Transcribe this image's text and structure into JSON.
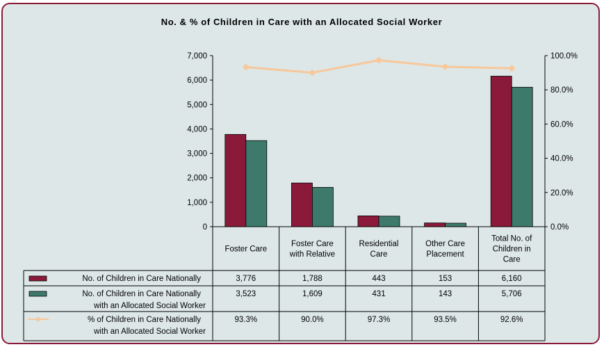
{
  "chart_data": {
    "type": "bar",
    "title": "No. & % of Children in Care with an Allocated Social Worker",
    "categories": [
      [
        "Foster Care"
      ],
      [
        "Foster Care",
        "with Relative"
      ],
      [
        "Residential",
        "Care"
      ],
      [
        "Other Care",
        "Placement"
      ],
      [
        "Total No. of",
        "Children in",
        "Care"
      ]
    ],
    "ylim": [
      0,
      7000
    ],
    "y2lim": [
      0,
      100
    ],
    "y_ticks": [
      "0",
      "1,000",
      "2,000",
      "3,000",
      "4,000",
      "5,000",
      "6,000",
      "7,000"
    ],
    "y2_ticks": [
      "0.0%",
      "20.0%",
      "40.0%",
      "60.0%",
      "80.0%",
      "100.0%"
    ],
    "grid": false,
    "legend": "data-table",
    "series": [
      {
        "name": [
          "No. of Children in Care Nationally"
        ],
        "type": "bar",
        "axis": "left",
        "color": "#8b1a3a",
        "values": [
          3776,
          1788,
          443,
          153,
          6160
        ],
        "labels": [
          "3,776",
          "1,788",
          "443",
          "153",
          "6,160"
        ]
      },
      {
        "name": [
          "No. of Children in Care Nationally",
          "with an Allocated Social Worker"
        ],
        "type": "bar",
        "axis": "left",
        "color": "#3d7a6b",
        "values": [
          3523,
          1609,
          431,
          143,
          5706
        ],
        "labels": [
          "3,523",
          "1,609",
          "431",
          "143",
          "5,706"
        ]
      },
      {
        "name": [
          "% of Children in Care Nationally",
          "with an Allocated Social Worker"
        ],
        "type": "line",
        "axis": "right",
        "color": "#f8c79a",
        "values": [
          93.3,
          90.0,
          97.3,
          93.5,
          92.6
        ],
        "labels": [
          "93.3%",
          "90.0%",
          "97.3%",
          "93.5%",
          "92.6%"
        ]
      }
    ]
  }
}
